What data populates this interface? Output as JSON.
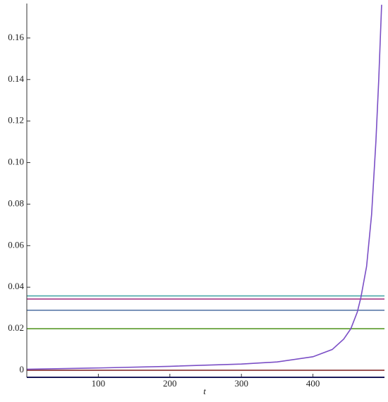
{
  "chart_data": {
    "type": "line",
    "xlabel": "t",
    "xlim": [
      0,
      500
    ],
    "ylim": [
      -0.0034,
      0.1766
    ],
    "xticks": [
      100,
      200,
      300,
      400
    ],
    "yticks": [
      0,
      0.02,
      0.04,
      0.06,
      0.08,
      {
        "value": 0.1,
        "label": "0.10"
      },
      0.12,
      0.14,
      0.16
    ],
    "series": [
      {
        "color": "#4aa9a9",
        "x": [
          0,
          500
        ],
        "values": [
          0.0358,
          0.0358
        ]
      },
      {
        "color": "#a0287d",
        "x": [
          0,
          500
        ],
        "values": [
          0.0343,
          0.0343
        ]
      },
      {
        "color": "#5b7aa8",
        "x": [
          0,
          500
        ],
        "values": [
          0.0289,
          0.0289
        ]
      },
      {
        "color": "#5a9a2a",
        "x": [
          0,
          500
        ],
        "values": [
          0.02,
          0.02
        ]
      },
      {
        "color": "#7a1a1a",
        "x": [
          0,
          500
        ],
        "values": [
          0,
          0
        ]
      },
      {
        "color": "#7b4fc6",
        "x": [
          0,
          100,
          200,
          300,
          350,
          400,
          427,
          443,
          453,
          462,
          467,
          475,
          482,
          488,
          492,
          496
        ],
        "values": [
          0.0005,
          0.0011,
          0.0019,
          0.003,
          0.004,
          0.0065,
          0.01,
          0.015,
          0.02,
          0.028,
          0.035,
          0.05,
          0.075,
          0.11,
          0.14,
          0.176
        ]
      }
    ]
  }
}
